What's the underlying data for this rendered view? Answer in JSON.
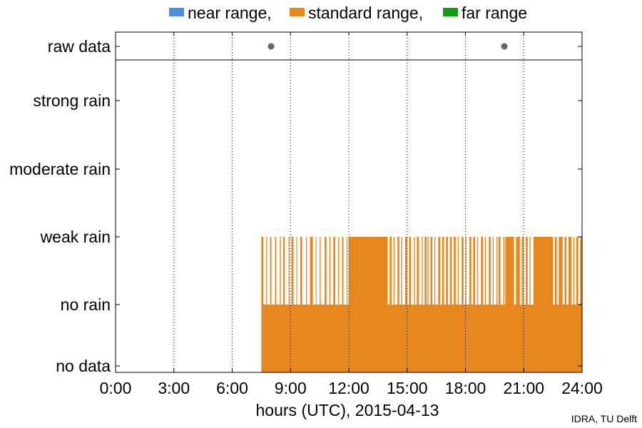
{
  "chart_data": {
    "type": "bar",
    "title": "",
    "xlabel": "hours (UTC), 2015-04-13",
    "x_unit": "hours",
    "xlim": [
      0,
      24
    ],
    "x_ticks": [
      0,
      3,
      6,
      9,
      12,
      15,
      18,
      21,
      24
    ],
    "x_tick_labels": [
      "0:00",
      "3:00",
      "6:00",
      "9:00",
      "12:00",
      "15:00",
      "18:00",
      "21:00",
      "24:00"
    ],
    "grid_x": true,
    "categories": [
      "no data",
      "no rain",
      "weak rain",
      "moderate rain",
      "strong rain"
    ],
    "legend": {
      "placement": "top-center",
      "entries": [
        {
          "label": "near range,",
          "color": "#4a90e2"
        },
        {
          "label": "standard range,",
          "color": "#e8871e"
        },
        {
          "label": "far range",
          "color": "#119e11"
        }
      ]
    },
    "raw_data": {
      "label": "raw data",
      "points_hours": [
        8.0,
        20.0
      ],
      "color": "#666666"
    },
    "series": [
      {
        "name": "standard range",
        "color": "#e8871e",
        "no_rain_span_hours": [
          7.5,
          24.0
        ],
        "weak_rain_spans_hours": [
          [
            7.5,
            7.6
          ],
          [
            7.75,
            7.8
          ],
          [
            7.95,
            8.02
          ],
          [
            8.2,
            8.26
          ],
          [
            8.45,
            8.5
          ],
          [
            8.62,
            8.7
          ],
          [
            8.9,
            8.95
          ],
          [
            9.05,
            9.15
          ],
          [
            9.3,
            9.34
          ],
          [
            9.5,
            9.6
          ],
          [
            9.8,
            9.85
          ],
          [
            10.0,
            10.15
          ],
          [
            10.3,
            10.34
          ],
          [
            10.5,
            10.55
          ],
          [
            10.75,
            10.85
          ],
          [
            11.0,
            11.05
          ],
          [
            11.2,
            11.3
          ],
          [
            11.45,
            11.5
          ],
          [
            11.65,
            11.72
          ],
          [
            11.88,
            11.92
          ],
          [
            12.0,
            14.0
          ],
          [
            14.1,
            14.2
          ],
          [
            14.3,
            14.35
          ],
          [
            14.5,
            14.6
          ],
          [
            14.7,
            14.75
          ],
          [
            14.9,
            15.0
          ],
          [
            15.1,
            15.2
          ],
          [
            15.35,
            15.4
          ],
          [
            15.5,
            15.6
          ],
          [
            15.75,
            15.8
          ],
          [
            15.9,
            16.0
          ],
          [
            16.05,
            16.1
          ],
          [
            16.2,
            16.3
          ],
          [
            16.4,
            16.45
          ],
          [
            16.6,
            16.7
          ],
          [
            16.8,
            16.9
          ],
          [
            17.0,
            17.1
          ],
          [
            17.2,
            17.3
          ],
          [
            17.4,
            17.5
          ],
          [
            17.6,
            17.65
          ],
          [
            17.8,
            17.9
          ],
          [
            18.0,
            18.05
          ],
          [
            18.2,
            18.3
          ],
          [
            18.4,
            18.5
          ],
          [
            18.6,
            18.65
          ],
          [
            18.8,
            18.9
          ],
          [
            19.0,
            19.05
          ],
          [
            19.2,
            19.3
          ],
          [
            19.4,
            19.45
          ],
          [
            19.6,
            19.65
          ],
          [
            19.7,
            19.8
          ],
          [
            19.95,
            20.0
          ],
          [
            20.05,
            20.5
          ],
          [
            20.6,
            20.8
          ],
          [
            20.9,
            21.0
          ],
          [
            21.1,
            21.2
          ],
          [
            21.3,
            21.35
          ],
          [
            21.5,
            22.5
          ],
          [
            22.6,
            22.7
          ],
          [
            22.8,
            23.0
          ],
          [
            23.1,
            23.2
          ],
          [
            23.3,
            23.45
          ],
          [
            23.55,
            23.6
          ],
          [
            23.7,
            23.8
          ],
          [
            23.9,
            24.0
          ]
        ]
      }
    ]
  },
  "credit": "IDRA, TU Delft"
}
